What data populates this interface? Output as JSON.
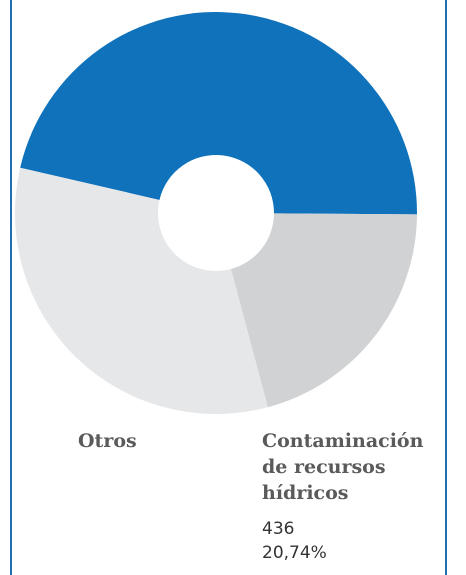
{
  "chart_data": {
    "type": "pie",
    "donut": true,
    "categories": [
      null,
      "Contaminación de recursos hídricos",
      "Otros"
    ],
    "values": [
      46.5,
      20.74,
      32.76
    ],
    "value_labels": [
      null,
      "20,74%",
      null
    ],
    "counts": [
      null,
      436,
      null
    ],
    "colors": [
      "#0f72ba",
      "#d1d2d4",
      "#e6e7e9"
    ]
  }
}
